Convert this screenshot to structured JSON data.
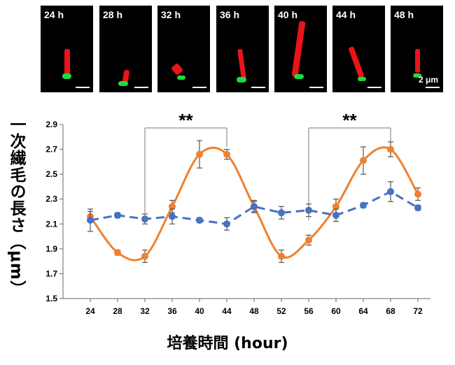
{
  "panels": [
    {
      "label": "24 h"
    },
    {
      "label": "28 h"
    },
    {
      "label": "32 h"
    },
    {
      "label": "36 h"
    },
    {
      "label": "40 h"
    },
    {
      "label": "44 h"
    },
    {
      "label": "48 h"
    }
  ],
  "scale_label": "2 μm",
  "colors": {
    "orange": "#f0812f",
    "blue": "#4472c4",
    "cilium_red": "#e8141a",
    "basal_green": "#1fdc3a"
  },
  "chart_data": {
    "type": "line",
    "xlabel": "培養時間 (hour)",
    "ylabel": "一次繊毛の長さ（μm）",
    "x": [
      24,
      28,
      32,
      36,
      40,
      44,
      48,
      52,
      56,
      60,
      64,
      68,
      72
    ],
    "ylim": [
      1.5,
      2.9
    ],
    "yticks": [
      "1.5",
      "1.7",
      "1.9",
      "2.1",
      "2.3",
      "2.5",
      "2.7",
      "2.9"
    ],
    "grid": false,
    "series": [
      {
        "color": "#f0812f",
        "style": "solid-smooth",
        "values": [
          2.16,
          1.87,
          1.84,
          2.24,
          2.66,
          2.66,
          2.24,
          1.84,
          1.97,
          2.24,
          2.61,
          2.7,
          2.34
        ],
        "errors": [
          0.04,
          0.02,
          0.05,
          0.05,
          0.11,
          0.04,
          0.05,
          0.05,
          0.04,
          0.06,
          0.11,
          0.06,
          0.05
        ]
      },
      {
        "color": "#4472c4",
        "style": "dashed",
        "values": [
          2.13,
          2.17,
          2.14,
          2.16,
          2.13,
          2.1,
          2.24,
          2.19,
          2.21,
          2.17,
          2.25,
          2.36,
          2.23
        ],
        "errors": [
          0.09,
          0.02,
          0.04,
          0.06,
          0.02,
          0.05,
          0.04,
          0.05,
          0.05,
          0.05,
          0.02,
          0.08,
          0.02
        ]
      }
    ],
    "annotations": [
      {
        "text": "**",
        "x_from": 32,
        "x_to": 44
      },
      {
        "text": "**",
        "x_from": 56,
        "x_to": 68
      }
    ]
  }
}
